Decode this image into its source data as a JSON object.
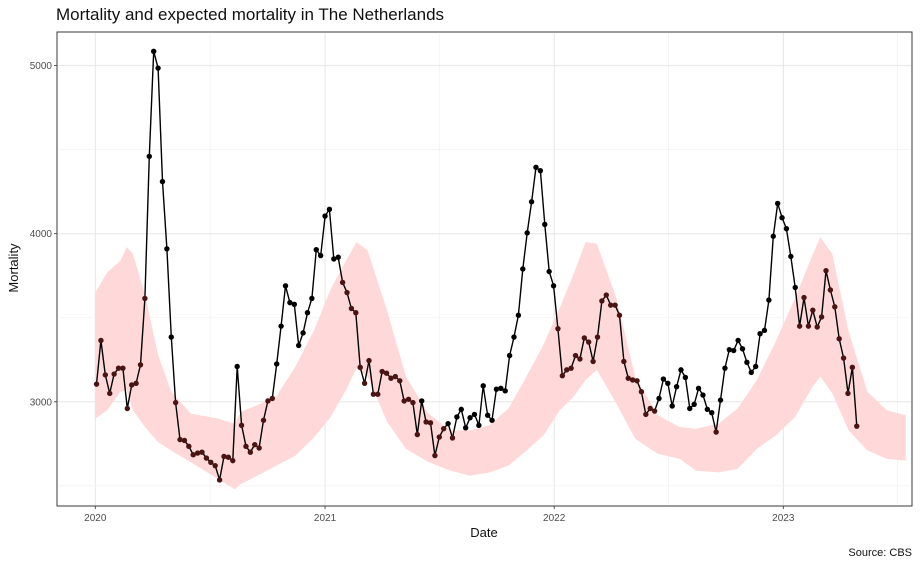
{
  "chart_data": {
    "type": "line",
    "title": "Mortality and expected mortality in The Netherlands",
    "xlabel": "Date",
    "ylabel": "Mortality",
    "caption": "Source: CBS",
    "x_ticks": [
      "2020",
      "2021",
      "2022",
      "2023"
    ],
    "y_ticks": [
      3000,
      4000,
      5000
    ],
    "ylim": [
      2380,
      5200
    ],
    "xlim": [
      "2019-11-01",
      "2023-07-25"
    ],
    "grid": true,
    "legend": "none",
    "colors": {
      "line": "#000000",
      "point_above": "#000000",
      "point_inside": "#4a1414",
      "band": "#ffd9d9"
    },
    "series": [
      {
        "x": [
          "2020-01-03",
          "2020-01-10",
          "2020-01-17",
          "2020-01-24",
          "2020-01-31",
          "2020-02-07",
          "2020-02-14",
          "2020-02-21",
          "2020-02-28",
          "2020-03-06",
          "2020-03-13",
          "2020-03-20",
          "2020-03-27",
          "2020-04-03",
          "2020-04-10",
          "2020-04-17",
          "2020-04-24",
          "2020-05-01",
          "2020-05-08",
          "2020-05-15",
          "2020-05-22",
          "2020-05-29",
          "2020-06-05",
          "2020-06-12",
          "2020-06-19",
          "2020-06-26",
          "2020-07-03",
          "2020-07-10",
          "2020-07-17",
          "2020-07-24",
          "2020-07-31",
          "2020-08-07",
          "2020-08-14",
          "2020-08-21",
          "2020-08-28",
          "2020-09-04",
          "2020-09-11",
          "2020-09-18",
          "2020-09-25",
          "2020-10-02",
          "2020-10-09",
          "2020-10-16",
          "2020-10-23",
          "2020-10-30",
          "2020-11-06",
          "2020-11-13",
          "2020-11-20",
          "2020-11-27",
          "2020-12-04",
          "2020-12-11",
          "2020-12-18",
          "2020-12-25",
          "2021-01-01",
          "2021-01-08",
          "2021-01-15",
          "2021-01-22",
          "2021-01-29",
          "2021-02-05",
          "2021-02-12",
          "2021-02-19",
          "2021-02-26",
          "2021-03-05",
          "2021-03-12",
          "2021-03-19",
          "2021-03-26",
          "2021-04-02",
          "2021-04-09",
          "2021-04-16",
          "2021-04-23",
          "2021-04-30",
          "2021-05-07",
          "2021-05-14",
          "2021-05-21",
          "2021-05-28",
          "2021-06-04",
          "2021-06-11",
          "2021-06-18",
          "2021-06-25",
          "2021-07-02",
          "2021-07-09",
          "2021-07-16",
          "2021-07-23",
          "2021-07-30",
          "2021-08-06",
          "2021-08-13",
          "2021-08-20",
          "2021-08-27",
          "2021-09-03",
          "2021-09-10",
          "2021-09-17",
          "2021-09-24",
          "2021-10-01",
          "2021-10-08",
          "2021-10-15",
          "2021-10-22",
          "2021-10-29",
          "2021-11-05",
          "2021-11-12",
          "2021-11-19",
          "2021-11-26",
          "2021-12-03",
          "2021-12-10",
          "2021-12-17",
          "2021-12-24",
          "2021-12-31",
          "2022-01-07",
          "2022-01-14",
          "2022-01-21",
          "2022-01-28",
          "2022-02-04",
          "2022-02-11",
          "2022-02-18",
          "2022-02-25",
          "2022-03-04",
          "2022-03-11",
          "2022-03-18",
          "2022-03-25",
          "2022-04-01",
          "2022-04-08",
          "2022-04-15",
          "2022-04-22",
          "2022-04-29",
          "2022-05-06",
          "2022-05-13",
          "2022-05-20",
          "2022-05-27",
          "2022-06-03",
          "2022-06-10",
          "2022-06-17",
          "2022-06-24",
          "2022-07-01",
          "2022-07-08",
          "2022-07-15",
          "2022-07-22",
          "2022-07-29",
          "2022-08-05",
          "2022-08-12",
          "2022-08-19",
          "2022-08-26",
          "2022-09-02",
          "2022-09-09",
          "2022-09-16",
          "2022-09-23",
          "2022-09-30",
          "2022-10-07",
          "2022-10-14",
          "2022-10-21",
          "2022-10-28",
          "2022-11-04",
          "2022-11-11",
          "2022-11-18",
          "2022-11-25",
          "2022-12-02",
          "2022-12-09",
          "2022-12-16",
          "2022-12-23",
          "2022-12-30",
          "2023-01-06",
          "2023-01-13",
          "2023-01-20",
          "2023-01-27",
          "2023-02-03",
          "2023-02-10",
          "2023-02-17",
          "2023-02-24",
          "2023-03-03",
          "2023-03-10",
          "2023-03-17",
          "2023-03-24",
          "2023-03-31",
          "2023-04-07",
          "2023-04-14",
          "2023-04-21",
          "2023-04-28"
        ],
        "values": [
          3105,
          3365,
          3160,
          3050,
          3165,
          3200,
          3200,
          2960,
          3100,
          3110,
          3220,
          3615,
          4460,
          5085,
          4985,
          4310,
          3910,
          3385,
          2995,
          2775,
          2770,
          2735,
          2685,
          2695,
          2700,
          2665,
          2640,
          2620,
          2535,
          2675,
          2670,
          2650,
          3210,
          2860,
          2735,
          2700,
          2745,
          2725,
          2890,
          3005,
          3020,
          3225,
          3450,
          3690,
          3590,
          3580,
          3335,
          3410,
          3530,
          3615,
          3905,
          3870,
          4105,
          4145,
          3850,
          3860,
          3710,
          3650,
          3555,
          3530,
          3205,
          3110,
          3245,
          3045,
          3045,
          3180,
          3170,
          3140,
          3150,
          3125,
          3005,
          3015,
          2995,
          2805,
          3005,
          2880,
          2875,
          2680,
          2790,
          2840,
          2870,
          2785,
          2910,
          2955,
          2845,
          2905,
          2925,
          2860,
          3095,
          2920,
          2890,
          3075,
          3080,
          3065,
          3275,
          3385,
          3515,
          3790,
          4005,
          4190,
          4395,
          4375,
          4055,
          3775,
          3690,
          3435,
          3155,
          3190,
          3200,
          3275,
          3255,
          3380,
          3355,
          3240,
          3385,
          3600,
          3635,
          3575,
          3575,
          3515,
          3240,
          3140,
          3130,
          3125,
          3060,
          2925,
          2960,
          2945,
          3020,
          3135,
          3110,
          2975,
          3090,
          3190,
          3145,
          2960,
          2985,
          3080,
          3040,
          2955,
          2935,
          2820,
          3010,
          3200,
          3310,
          3305,
          3365,
          3315,
          3235,
          3175,
          3210,
          3405,
          3425,
          3605,
          3985,
          4180,
          4095,
          4030,
          3865,
          3680,
          3450,
          3620,
          3450,
          3545,
          3445,
          3505,
          3780,
          3665,
          3565,
          3375,
          3260,
          3050,
          3205,
          2855
        ]
      }
    ],
    "expected_band": {
      "x": [
        "2020-01-01",
        "2020-01-20",
        "2020-02-10",
        "2020-02-20",
        "2020-03-01",
        "2020-03-20",
        "2020-04-10",
        "2020-05-01",
        "2020-06-01",
        "2020-07-15",
        "2020-08-10",
        "2020-08-20",
        "2020-09-15",
        "2020-10-15",
        "2020-11-15",
        "2020-12-15",
        "2021-01-10",
        "2021-02-05",
        "2021-02-20",
        "2021-03-10",
        "2021-04-10",
        "2021-05-10",
        "2021-06-15",
        "2021-07-20",
        "2021-08-20",
        "2021-09-20",
        "2021-10-20",
        "2021-11-15",
        "2021-12-15",
        "2022-01-10",
        "2022-02-01",
        "2022-02-20",
        "2022-03-10",
        "2022-04-10",
        "2022-05-10",
        "2022-06-15",
        "2022-07-20",
        "2022-08-15",
        "2022-09-20",
        "2022-10-20",
        "2022-11-20",
        "2022-12-20",
        "2023-01-20",
        "2023-02-15",
        "2023-03-01",
        "2023-03-20",
        "2023-04-15",
        "2023-05-15",
        "2023-06-15",
        "2023-07-15"
      ],
      "upper": [
        3650,
        3770,
        3840,
        3920,
        3880,
        3640,
        3280,
        3060,
        2930,
        2900,
        2870,
        2940,
        2980,
        3030,
        3210,
        3430,
        3670,
        3850,
        3950,
        3900,
        3540,
        3150,
        2930,
        2830,
        2830,
        2860,
        2960,
        3130,
        3340,
        3560,
        3760,
        3950,
        3940,
        3620,
        3150,
        2920,
        2850,
        2840,
        2870,
        2960,
        3130,
        3360,
        3620,
        3860,
        3980,
        3880,
        3420,
        3060,
        2950,
        2920
      ],
      "lower": [
        2900,
        2950,
        3060,
        3070,
        2950,
        2850,
        2760,
        2710,
        2640,
        2540,
        2480,
        2510,
        2560,
        2620,
        2680,
        2790,
        2910,
        3080,
        3200,
        3150,
        2880,
        2720,
        2640,
        2590,
        2560,
        2580,
        2620,
        2700,
        2800,
        2950,
        3030,
        3130,
        3190,
        2990,
        2780,
        2690,
        2660,
        2590,
        2580,
        2600,
        2720,
        2800,
        2910,
        3080,
        3150,
        3050,
        2830,
        2710,
        2660,
        2650
      ]
    }
  }
}
